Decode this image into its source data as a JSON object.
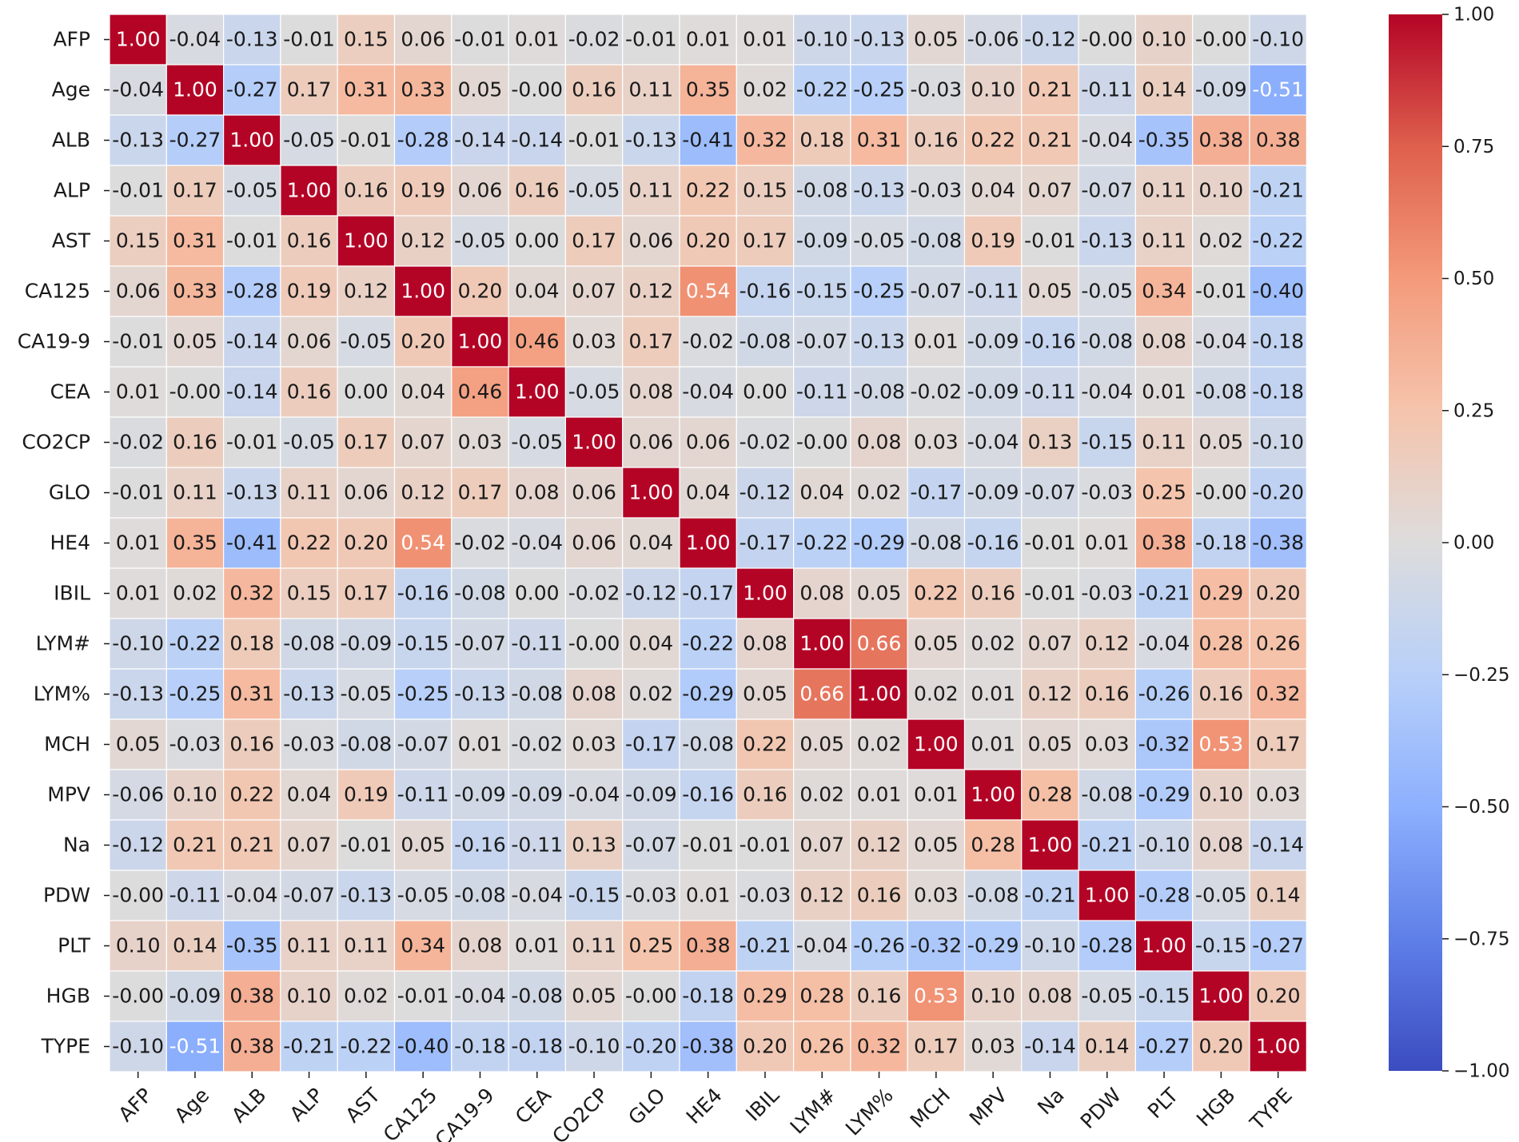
{
  "chart_data": {
    "type": "heatmap",
    "title": "",
    "colormap": "coolwarm",
    "vmin": -1.0,
    "vmax": 1.0,
    "value_format": "2 decimals",
    "labels": [
      "AFP",
      "Age",
      "ALB",
      "ALP",
      "AST",
      "CA125",
      "CA19-9",
      "CEA",
      "CO2CP",
      "GLO",
      "HE4",
      "IBIL",
      "LYM#",
      "LYM%",
      "MCH",
      "MPV",
      "Na",
      "PDW",
      "PLT",
      "HGB",
      "TYPE"
    ],
    "matrix_text": [
      [
        "1.00",
        "-0.04",
        "-0.13",
        "-0.01",
        "0.15",
        "0.06",
        "-0.01",
        "0.01",
        "-0.02",
        "-0.01",
        "0.01",
        "0.01",
        "-0.10",
        "-0.13",
        "0.05",
        "-0.06",
        "-0.12",
        "-0.00",
        "0.10",
        "-0.00",
        "-0.10"
      ],
      [
        "-0.04",
        "1.00",
        "-0.27",
        "0.17",
        "0.31",
        "0.33",
        "0.05",
        "-0.00",
        "0.16",
        "0.11",
        "0.35",
        "0.02",
        "-0.22",
        "-0.25",
        "-0.03",
        "0.10",
        "0.21",
        "-0.11",
        "0.14",
        "-0.09",
        "-0.51"
      ],
      [
        "-0.13",
        "-0.27",
        "1.00",
        "-0.05",
        "-0.01",
        "-0.28",
        "-0.14",
        "-0.14",
        "-0.01",
        "-0.13",
        "-0.41",
        "0.32",
        "0.18",
        "0.31",
        "0.16",
        "0.22",
        "0.21",
        "-0.04",
        "-0.35",
        "0.38",
        "0.38"
      ],
      [
        "-0.01",
        "0.17",
        "-0.05",
        "1.00",
        "0.16",
        "0.19",
        "0.06",
        "0.16",
        "-0.05",
        "0.11",
        "0.22",
        "0.15",
        "-0.08",
        "-0.13",
        "-0.03",
        "0.04",
        "0.07",
        "-0.07",
        "0.11",
        "0.10",
        "-0.21"
      ],
      [
        "0.15",
        "0.31",
        "-0.01",
        "0.16",
        "1.00",
        "0.12",
        "-0.05",
        "0.00",
        "0.17",
        "0.06",
        "0.20",
        "0.17",
        "-0.09",
        "-0.05",
        "-0.08",
        "0.19",
        "-0.01",
        "-0.13",
        "0.11",
        "0.02",
        "-0.22"
      ],
      [
        "0.06",
        "0.33",
        "-0.28",
        "0.19",
        "0.12",
        "1.00",
        "0.20",
        "0.04",
        "0.07",
        "0.12",
        "0.54",
        "-0.16",
        "-0.15",
        "-0.25",
        "-0.07",
        "-0.11",
        "0.05",
        "-0.05",
        "0.34",
        "-0.01",
        "-0.40"
      ],
      [
        "-0.01",
        "0.05",
        "-0.14",
        "0.06",
        "-0.05",
        "0.20",
        "1.00",
        "0.46",
        "0.03",
        "0.17",
        "-0.02",
        "-0.08",
        "-0.07",
        "-0.13",
        "0.01",
        "-0.09",
        "-0.16",
        "-0.08",
        "0.08",
        "-0.04",
        "-0.18"
      ],
      [
        "0.01",
        "-0.00",
        "-0.14",
        "0.16",
        "0.00",
        "0.04",
        "0.46",
        "1.00",
        "-0.05",
        "0.08",
        "-0.04",
        "0.00",
        "-0.11",
        "-0.08",
        "-0.02",
        "-0.09",
        "-0.11",
        "-0.04",
        "0.01",
        "-0.08",
        "-0.18"
      ],
      [
        "-0.02",
        "0.16",
        "-0.01",
        "-0.05",
        "0.17",
        "0.07",
        "0.03",
        "-0.05",
        "1.00",
        "0.06",
        "0.06",
        "-0.02",
        "-0.00",
        "0.08",
        "0.03",
        "-0.04",
        "0.13",
        "-0.15",
        "0.11",
        "0.05",
        "-0.10"
      ],
      [
        "-0.01",
        "0.11",
        "-0.13",
        "0.11",
        "0.06",
        "0.12",
        "0.17",
        "0.08",
        "0.06",
        "1.00",
        "0.04",
        "-0.12",
        "0.04",
        "0.02",
        "-0.17",
        "-0.09",
        "-0.07",
        "-0.03",
        "0.25",
        "-0.00",
        "-0.20"
      ],
      [
        "0.01",
        "0.35",
        "-0.41",
        "0.22",
        "0.20",
        "0.54",
        "-0.02",
        "-0.04",
        "0.06",
        "0.04",
        "1.00",
        "-0.17",
        "-0.22",
        "-0.29",
        "-0.08",
        "-0.16",
        "-0.01",
        "0.01",
        "0.38",
        "-0.18",
        "-0.38"
      ],
      [
        "0.01",
        "0.02",
        "0.32",
        "0.15",
        "0.17",
        "-0.16",
        "-0.08",
        "0.00",
        "-0.02",
        "-0.12",
        "-0.17",
        "1.00",
        "0.08",
        "0.05",
        "0.22",
        "0.16",
        "-0.01",
        "-0.03",
        "-0.21",
        "0.29",
        "0.20"
      ],
      [
        "-0.10",
        "-0.22",
        "0.18",
        "-0.08",
        "-0.09",
        "-0.15",
        "-0.07",
        "-0.11",
        "-0.00",
        "0.04",
        "-0.22",
        "0.08",
        "1.00",
        "0.66",
        "0.05",
        "0.02",
        "0.07",
        "0.12",
        "-0.04",
        "0.28",
        "0.26"
      ],
      [
        "-0.13",
        "-0.25",
        "0.31",
        "-0.13",
        "-0.05",
        "-0.25",
        "-0.13",
        "-0.08",
        "0.08",
        "0.02",
        "-0.29",
        "0.05",
        "0.66",
        "1.00",
        "0.02",
        "0.01",
        "0.12",
        "0.16",
        "-0.26",
        "0.16",
        "0.32"
      ],
      [
        "0.05",
        "-0.03",
        "0.16",
        "-0.03",
        "-0.08",
        "-0.07",
        "0.01",
        "-0.02",
        "0.03",
        "-0.17",
        "-0.08",
        "0.22",
        "0.05",
        "0.02",
        "1.00",
        "0.01",
        "0.05",
        "0.03",
        "-0.32",
        "0.53",
        "0.17"
      ],
      [
        "-0.06",
        "0.10",
        "0.22",
        "0.04",
        "0.19",
        "-0.11",
        "-0.09",
        "-0.09",
        "-0.04",
        "-0.09",
        "-0.16",
        "0.16",
        "0.02",
        "0.01",
        "0.01",
        "1.00",
        "0.28",
        "-0.08",
        "-0.29",
        "0.10",
        "0.03"
      ],
      [
        "-0.12",
        "0.21",
        "0.21",
        "0.07",
        "-0.01",
        "0.05",
        "-0.16",
        "-0.11",
        "0.13",
        "-0.07",
        "-0.01",
        "-0.01",
        "0.07",
        "0.12",
        "0.05",
        "0.28",
        "1.00",
        "-0.21",
        "-0.10",
        "0.08",
        "-0.14"
      ],
      [
        "-0.00",
        "-0.11",
        "-0.04",
        "-0.07",
        "-0.13",
        "-0.05",
        "-0.08",
        "-0.04",
        "-0.15",
        "-0.03",
        "0.01",
        "-0.03",
        "0.12",
        "0.16",
        "0.03",
        "-0.08",
        "-0.21",
        "1.00",
        "-0.28",
        "-0.05",
        "0.14"
      ],
      [
        "0.10",
        "0.14",
        "-0.35",
        "0.11",
        "0.11",
        "0.34",
        "0.08",
        "0.01",
        "0.11",
        "0.25",
        "0.38",
        "-0.21",
        "-0.04",
        "-0.26",
        "-0.32",
        "-0.29",
        "-0.10",
        "-0.28",
        "1.00",
        "-0.15",
        "-0.27"
      ],
      [
        "-0.00",
        "-0.09",
        "0.38",
        "0.10",
        "0.02",
        "-0.01",
        "-0.04",
        "-0.08",
        "0.05",
        "-0.00",
        "-0.18",
        "0.29",
        "0.28",
        "0.16",
        "0.53",
        "0.10",
        "0.08",
        "-0.05",
        "-0.15",
        "1.00",
        "0.20"
      ],
      [
        "-0.10",
        "-0.51",
        "0.38",
        "-0.21",
        "-0.22",
        "-0.40",
        "-0.18",
        "-0.18",
        "-0.10",
        "-0.20",
        "-0.38",
        "0.20",
        "0.26",
        "0.32",
        "0.17",
        "0.03",
        "-0.14",
        "0.14",
        "-0.27",
        "0.20",
        "1.00"
      ]
    ],
    "colorbar": {
      "ticks": [
        1.0,
        0.75,
        0.5,
        0.25,
        0.0,
        -0.25,
        -0.5,
        -0.75,
        -1.0
      ],
      "tick_labels": [
        "1.00",
        "0.75",
        "0.50",
        "0.25",
        "0.00",
        "−0.25",
        "−0.50",
        "−0.75",
        "−1.00"
      ]
    },
    "xlabel": "",
    "ylabel": ""
  }
}
